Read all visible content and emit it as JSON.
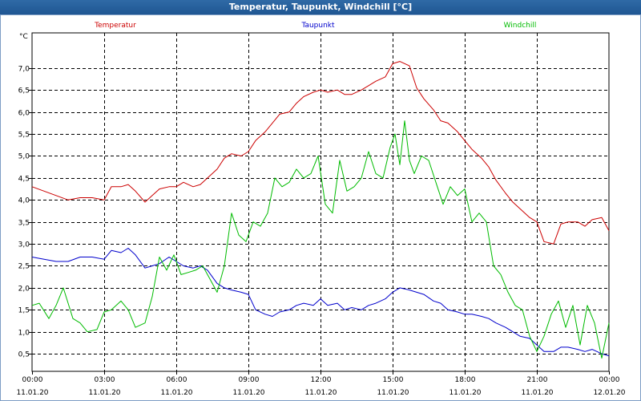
{
  "window": {
    "title": "Temperatur, Taupunkt, Windchill [°C]"
  },
  "chart_data": {
    "type": "line",
    "title": "Temperatur, Taupunkt, Windchill [°C]",
    "ylabel": "°C",
    "ylim": [
      0.1,
      7.8
    ],
    "xlim": [
      0,
      24
    ],
    "grid": true,
    "yticks": [
      0.5,
      1.0,
      1.5,
      2.0,
      2.5,
      3.0,
      3.5,
      4.0,
      4.5,
      5.0,
      5.5,
      6.0,
      6.5,
      7.0
    ],
    "ytick_labels": [
      "0,5",
      "1,0",
      "1,5",
      "2,0",
      "2,5",
      "3,0",
      "3,5",
      "4,0",
      "4,5",
      "5,0",
      "5,5",
      "6,0",
      "6,5",
      "7,0"
    ],
    "xticks": [
      {
        "hour": 0,
        "time": "00:00",
        "date": "11.01.20"
      },
      {
        "hour": 3,
        "time": "03:00",
        "date": "11.01.20"
      },
      {
        "hour": 6,
        "time": "06:00",
        "date": "11.01.20"
      },
      {
        "hour": 9,
        "time": "09:00",
        "date": "11.01.20"
      },
      {
        "hour": 12,
        "time": "12:00",
        "date": "11.01.20"
      },
      {
        "hour": 15,
        "time": "15:00",
        "date": "11.01.20"
      },
      {
        "hour": 18,
        "time": "18:00",
        "date": "11.01.20"
      },
      {
        "hour": 21,
        "time": "21:00",
        "date": "11.01.20"
      },
      {
        "hour": 24,
        "time": "00:00",
        "date": "12.01.20"
      }
    ],
    "series": [
      {
        "name": "Temperatur",
        "color": "#cc0000",
        "x": [
          0,
          0.5,
          1,
          1.5,
          2,
          2.5,
          3,
          3.3,
          3.7,
          4,
          4.3,
          4.7,
          5,
          5.3,
          5.7,
          6,
          6.3,
          6.7,
          7,
          7.3,
          7.7,
          8,
          8.3,
          8.7,
          9,
          9.3,
          9.7,
          10,
          10.3,
          10.7,
          11,
          11.3,
          11.7,
          12,
          12.3,
          12.7,
          13,
          13.3,
          13.7,
          14,
          14.3,
          14.7,
          15,
          15.3,
          15.7,
          16,
          16.3,
          16.7,
          17,
          17.3,
          17.7,
          18,
          18.3,
          18.7,
          19,
          19.3,
          19.7,
          20,
          20.3,
          20.7,
          21,
          21.3,
          21.7,
          22,
          22.3,
          22.7,
          23,
          23.3,
          23.7,
          24
        ],
        "values": [
          4.3,
          4.2,
          4.1,
          4.0,
          4.05,
          4.05,
          4.0,
          4.3,
          4.3,
          4.35,
          4.2,
          3.95,
          4.1,
          4.25,
          4.3,
          4.3,
          4.4,
          4.3,
          4.35,
          4.5,
          4.7,
          4.95,
          5.05,
          5.0,
          5.1,
          5.35,
          5.55,
          5.75,
          5.95,
          6.0,
          6.2,
          6.35,
          6.45,
          6.5,
          6.45,
          6.5,
          6.4,
          6.4,
          6.5,
          6.6,
          6.7,
          6.8,
          7.1,
          7.15,
          7.05,
          6.55,
          6.3,
          6.05,
          5.8,
          5.75,
          5.55,
          5.35,
          5.15,
          4.95,
          4.75,
          4.45,
          4.15,
          3.95,
          3.8,
          3.6,
          3.5,
          3.05,
          3.0,
          3.45,
          3.5,
          3.5,
          3.4,
          3.55,
          3.6,
          3.3
        ]
      },
      {
        "name": "Taupunkt",
        "color": "#0000cc",
        "x": [
          0,
          0.5,
          1,
          1.5,
          2,
          2.5,
          3,
          3.3,
          3.7,
          4,
          4.3,
          4.7,
          5,
          5.3,
          5.7,
          6,
          6.3,
          6.7,
          7,
          7.3,
          7.7,
          8,
          8.3,
          8.7,
          9,
          9.3,
          9.7,
          10,
          10.3,
          10.7,
          11,
          11.3,
          11.7,
          12,
          12.3,
          12.7,
          13,
          13.3,
          13.7,
          14,
          14.3,
          14.7,
          15,
          15.3,
          15.7,
          16,
          16.3,
          16.7,
          17,
          17.3,
          17.7,
          18,
          18.3,
          18.7,
          19,
          19.3,
          19.7,
          20,
          20.3,
          20.7,
          21,
          21.3,
          21.7,
          22,
          22.3,
          22.7,
          23,
          23.3,
          23.7,
          24
        ],
        "values": [
          2.7,
          2.65,
          2.6,
          2.6,
          2.7,
          2.7,
          2.65,
          2.85,
          2.8,
          2.9,
          2.75,
          2.45,
          2.5,
          2.55,
          2.7,
          2.6,
          2.5,
          2.45,
          2.5,
          2.4,
          2.1,
          2.0,
          1.95,
          1.9,
          1.85,
          1.5,
          1.4,
          1.35,
          1.45,
          1.5,
          1.6,
          1.65,
          1.6,
          1.75,
          1.6,
          1.65,
          1.5,
          1.55,
          1.5,
          1.6,
          1.65,
          1.75,
          1.9,
          2.0,
          1.95,
          1.9,
          1.85,
          1.7,
          1.65,
          1.5,
          1.45,
          1.4,
          1.4,
          1.35,
          1.3,
          1.2,
          1.1,
          1.0,
          0.9,
          0.85,
          0.7,
          0.55,
          0.55,
          0.65,
          0.65,
          0.6,
          0.55,
          0.6,
          0.5,
          0.45
        ]
      },
      {
        "name": "Windchill",
        "color": "#00bb00",
        "x": [
          0,
          0.3,
          0.7,
          1,
          1.3,
          1.7,
          2,
          2.3,
          2.7,
          3,
          3.3,
          3.7,
          4,
          4.3,
          4.7,
          5,
          5.3,
          5.6,
          5.9,
          6.2,
          6.5,
          6.8,
          7.1,
          7.4,
          7.7,
          8,
          8.3,
          8.6,
          8.9,
          9.2,
          9.5,
          9.8,
          10.1,
          10.4,
          10.7,
          11,
          11.3,
          11.6,
          11.9,
          12.2,
          12.5,
          12.8,
          13.1,
          13.4,
          13.7,
          14,
          14.3,
          14.6,
          14.9,
          15.1,
          15.3,
          15.5,
          15.7,
          15.9,
          16.2,
          16.5,
          16.8,
          17.1,
          17.4,
          17.7,
          18,
          18.3,
          18.6,
          18.9,
          19.2,
          19.5,
          19.8,
          20.1,
          20.4,
          20.7,
          21,
          21.3,
          21.6,
          21.9,
          22.2,
          22.5,
          22.8,
          23.1,
          23.4,
          23.7,
          24
        ],
        "values": [
          1.6,
          1.65,
          1.3,
          1.6,
          2.0,
          1.3,
          1.2,
          1.0,
          1.05,
          1.45,
          1.5,
          1.7,
          1.5,
          1.1,
          1.2,
          1.8,
          2.7,
          2.4,
          2.75,
          2.3,
          2.35,
          2.4,
          2.5,
          2.2,
          1.9,
          2.5,
          3.7,
          3.2,
          3.05,
          3.5,
          3.4,
          3.7,
          4.5,
          4.3,
          4.4,
          4.7,
          4.5,
          4.6,
          5.0,
          3.9,
          3.7,
          4.9,
          4.2,
          4.3,
          4.5,
          5.1,
          4.6,
          4.5,
          5.2,
          5.5,
          4.8,
          5.8,
          4.9,
          4.6,
          5.0,
          4.9,
          4.4,
          3.9,
          4.3,
          4.1,
          4.25,
          3.5,
          3.7,
          3.5,
          2.5,
          2.3,
          1.9,
          1.6,
          1.5,
          0.9,
          0.55,
          0.9,
          1.4,
          1.7,
          1.1,
          1.6,
          0.7,
          1.6,
          1.2,
          0.4,
          1.2
        ]
      }
    ]
  }
}
